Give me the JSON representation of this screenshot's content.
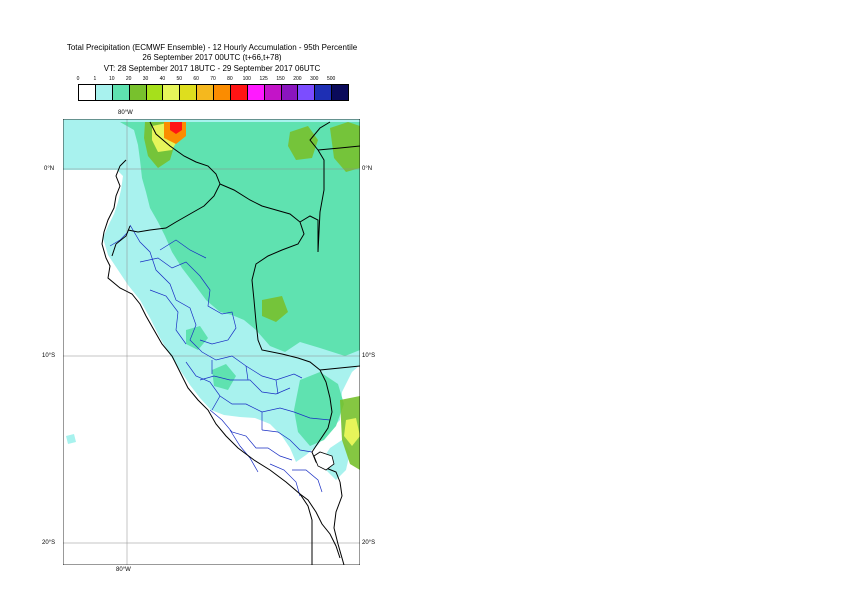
{
  "header": {
    "line1": "Total Precipitation (ECMWF Ensemble) - 12 Hourly Accumulation - 95th Percentile",
    "line2": "26 September 2017 00UTC (t+66,t+78)",
    "line3": "VT: 28 September 2017 18UTC - 29 September 2017 06UTC"
  },
  "legend": {
    "labels": [
      "0",
      "1",
      "10",
      "20",
      "30",
      "40",
      "50",
      "60",
      "70",
      "80",
      "100",
      "125",
      "150",
      "200",
      "300",
      "500"
    ],
    "colors": [
      "#ffffff",
      "#a8f2ee",
      "#5fe2b0",
      "#78c12d",
      "#a6e01b",
      "#e6f55a",
      "#dede1e",
      "#f5b81e",
      "#fb8c00",
      "#ff1414",
      "#ff1aff",
      "#c314c8",
      "#8a15be",
      "#7c4dff",
      "#1e2fb4",
      "#0a0a5a"
    ]
  },
  "map": {
    "lon_labels": {
      "top": "80°W",
      "bottom": "80°W"
    },
    "lat_labels": {
      "equator": "0°N",
      "ten_south": "10°S",
      "twenty_south": "20°S"
    },
    "colors": {
      "light_cyan": "#a8f2ee",
      "medium_green": "#5fe2b0",
      "green": "#78c12d",
      "yellow": "#e6f55a",
      "orange": "#fb8c00",
      "red": "#ff1414",
      "country_border": "#000000",
      "region_border": "#1a2fc4",
      "grid": "#8c8c8c"
    }
  }
}
